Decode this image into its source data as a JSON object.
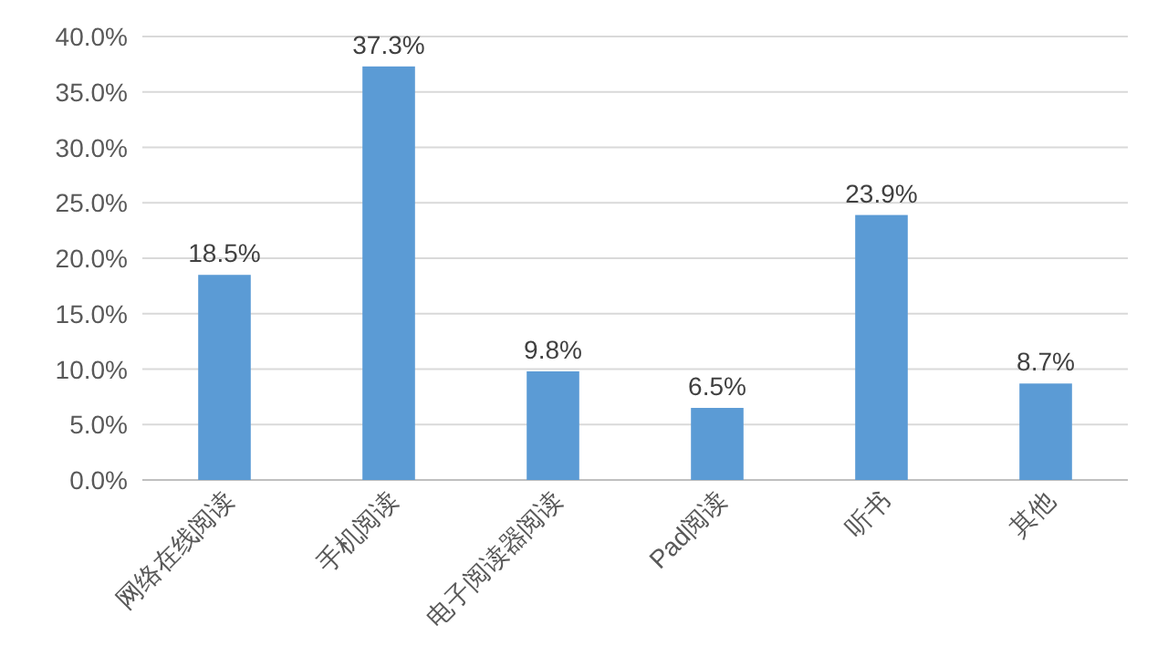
{
  "chart_data": {
    "type": "bar",
    "categories": [
      "网络在线阅读",
      "手机阅读",
      "电子阅读器阅读",
      "Pad阅读",
      "听书",
      "其他"
    ],
    "values": [
      18.5,
      37.3,
      9.8,
      6.5,
      23.9,
      8.7
    ],
    "value_labels": [
      "18.5%",
      "37.3%",
      "9.8%",
      "6.5%",
      "23.9%",
      "8.7%"
    ],
    "color": "#5b9bd5",
    "ylim": [
      0,
      40
    ],
    "yticks": [
      {
        "value": 0,
        "label": "0.0%"
      },
      {
        "value": 5,
        "label": "5.0%"
      },
      {
        "value": 10,
        "label": "10.0%"
      },
      {
        "value": 15,
        "label": "15.0%"
      },
      {
        "value": 20,
        "label": "20.0%"
      },
      {
        "value": 25,
        "label": "25.0%"
      },
      {
        "value": 30,
        "label": "30.0%"
      },
      {
        "value": 35,
        "label": "35.0%"
      },
      {
        "value": 40,
        "label": "40.0%"
      }
    ],
    "grid": "y"
  }
}
